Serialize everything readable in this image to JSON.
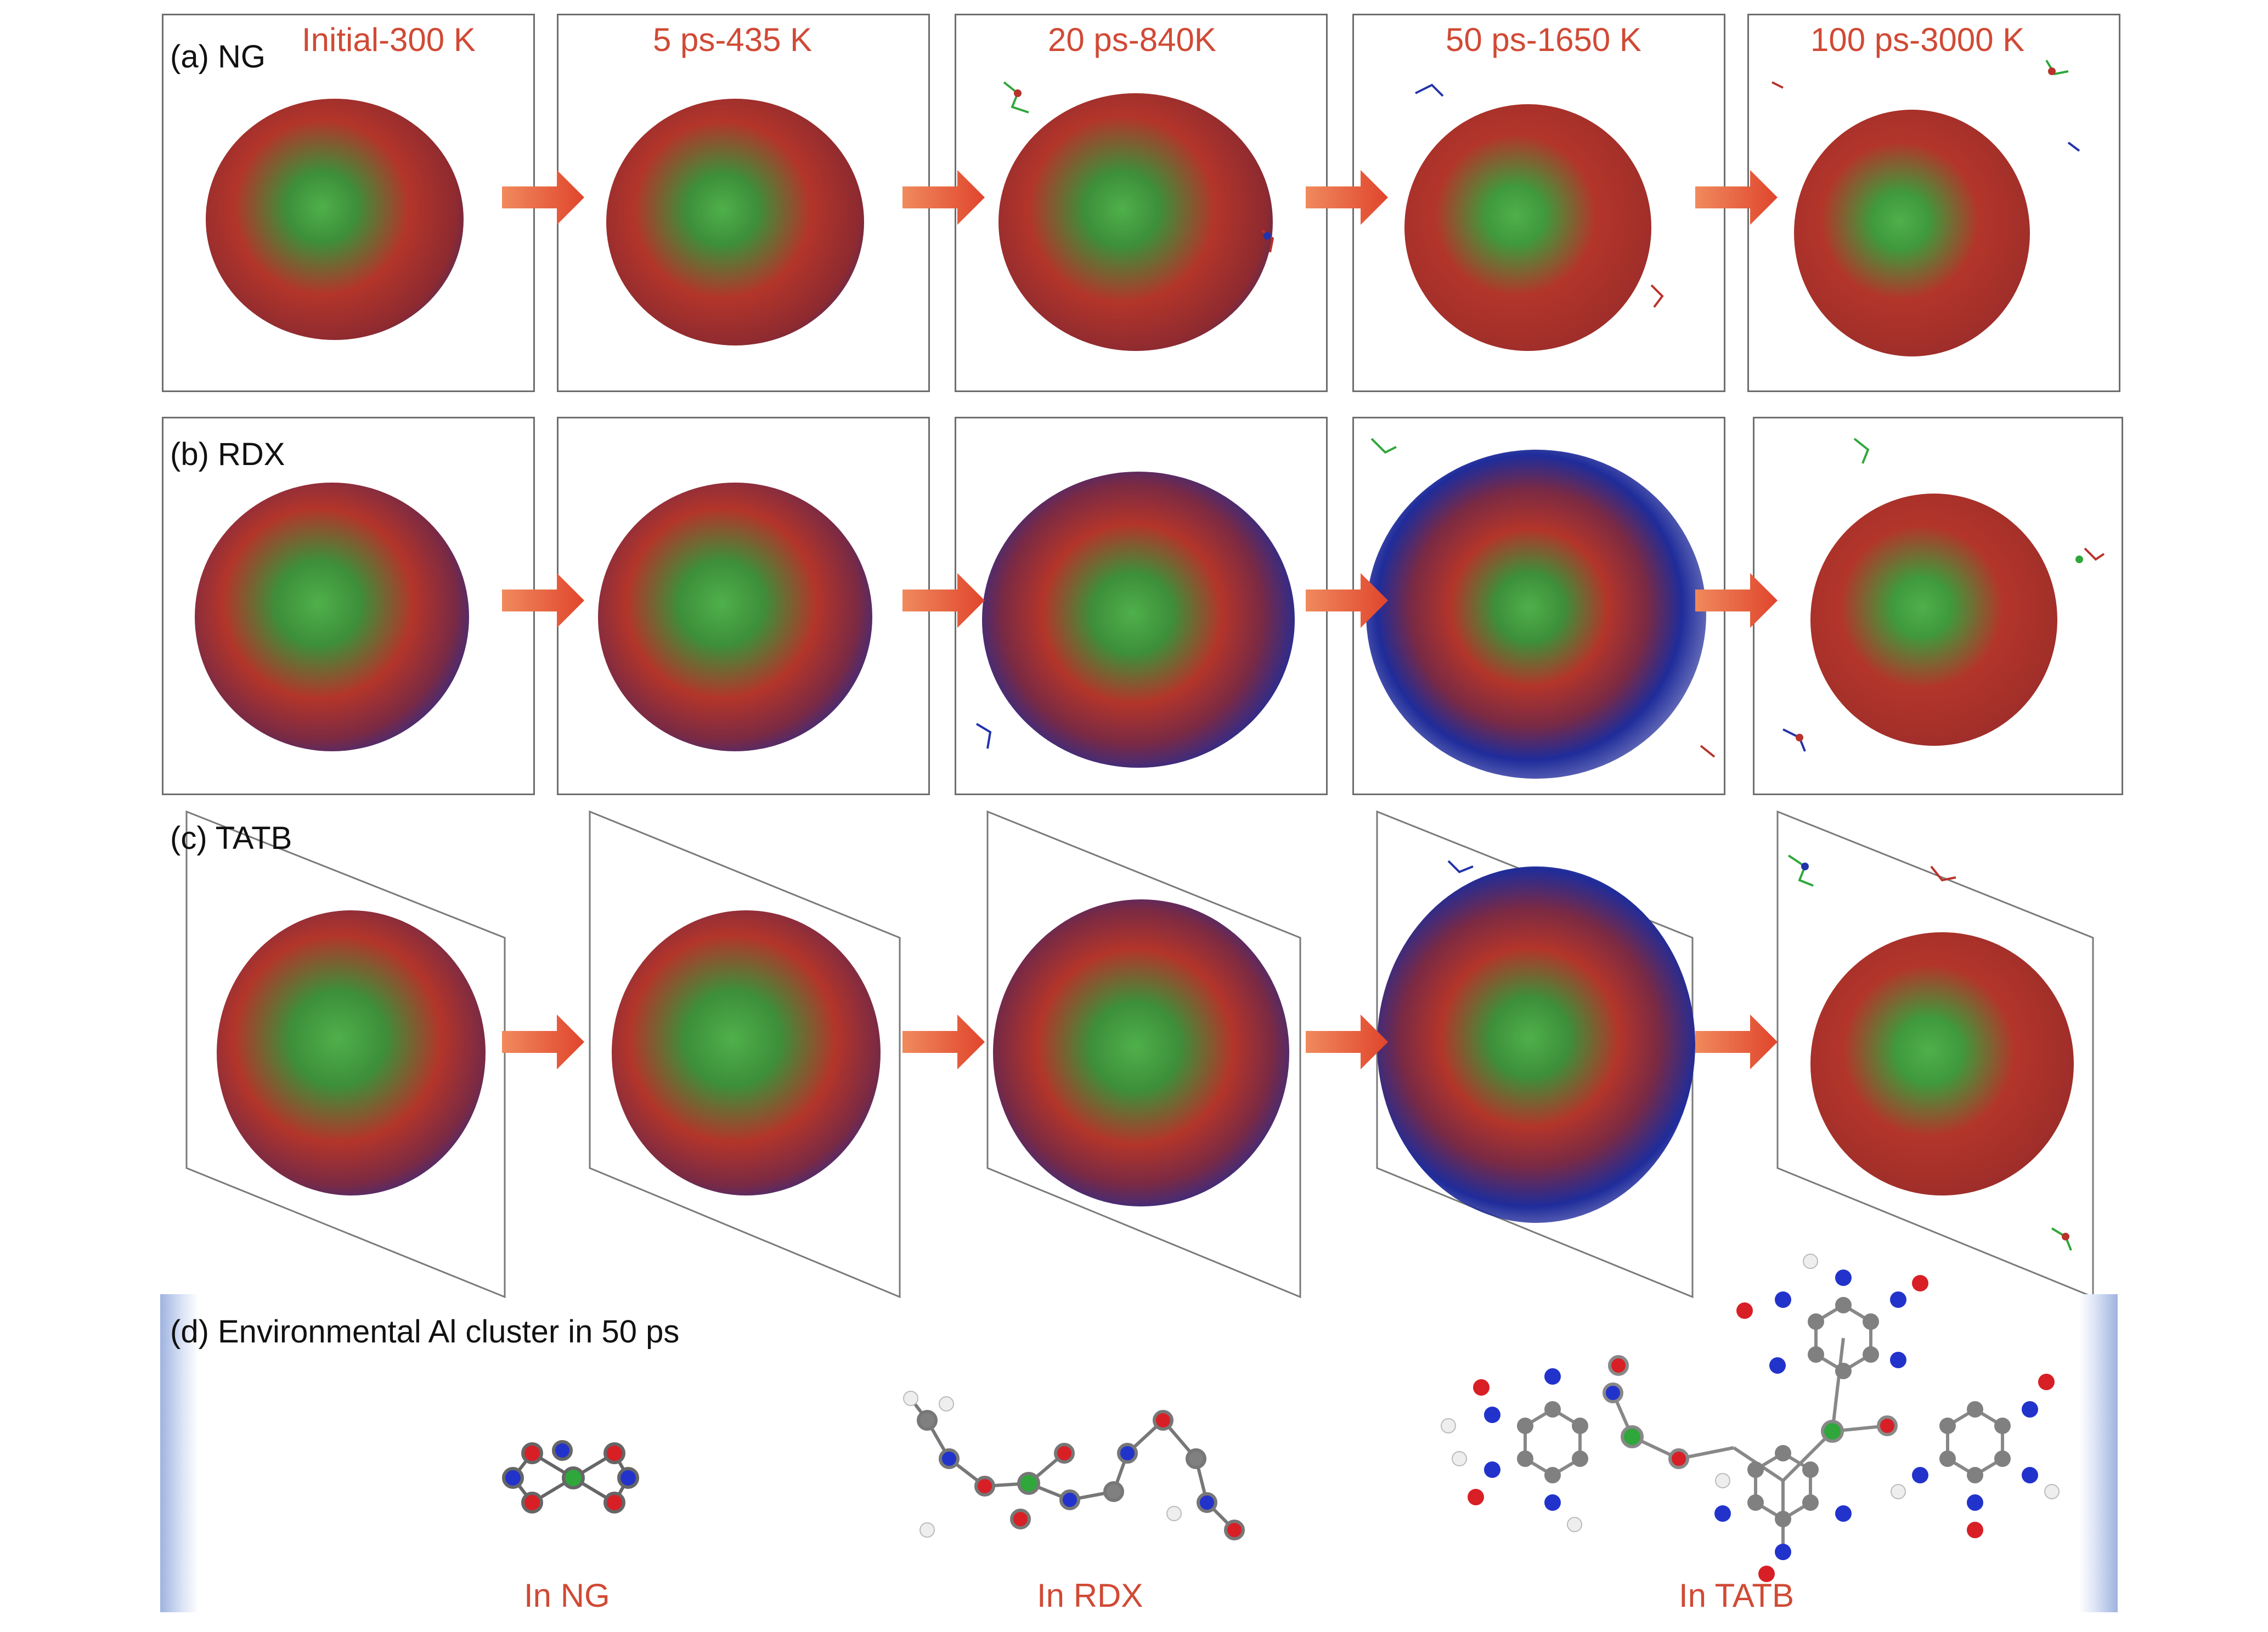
{
  "stages": [
    {
      "label": "Initial-300 K"
    },
    {
      "label": "5 ps-435 K"
    },
    {
      "label": "20 ps-840K"
    },
    {
      "label": "50 ps-1650 K"
    },
    {
      "label": "100 ps-3000 K"
    }
  ],
  "rows": [
    {
      "label": "(a) NG"
    },
    {
      "label": "(b) RDX"
    },
    {
      "label": "(c) TATB"
    }
  ],
  "section_d": {
    "title": "(d) Environmental Al cluster in 50 ps",
    "captions": [
      "In NG",
      "In RDX",
      "In TATB"
    ]
  },
  "colors": {
    "stage_label": "#d04a35",
    "arrow": "#e8583a",
    "frame": "#6e6e6e",
    "core": "#b8332a",
    "green": "#2fa73a",
    "blue": "#2233aa",
    "carbon": "#808080",
    "side_bar": "#9fb3e0"
  }
}
